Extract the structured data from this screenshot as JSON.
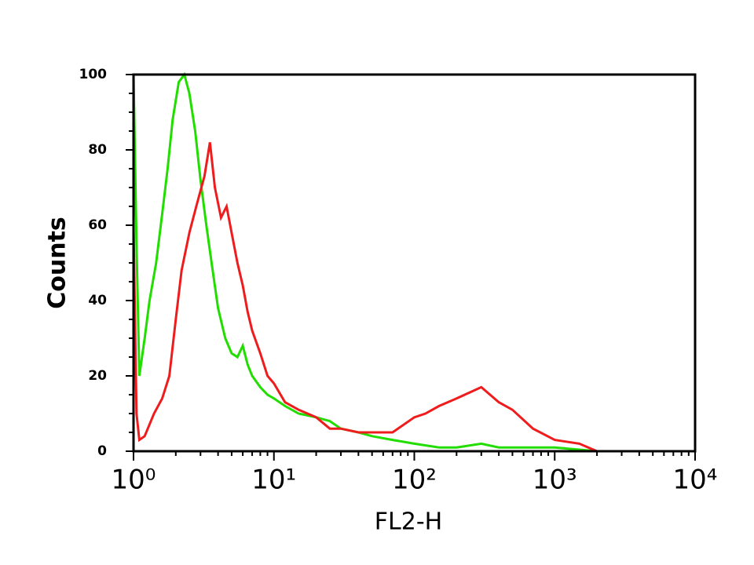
{
  "chart_data": {
    "type": "line",
    "xlabel": "FL2-H",
    "ylabel": "Counts",
    "xscale": "log",
    "xlim": [
      1,
      10000
    ],
    "xticks": [
      {
        "value": 1,
        "label": "10⁰"
      },
      {
        "value": 10,
        "label": "10¹"
      },
      {
        "value": 100,
        "label": "10²"
      },
      {
        "value": 1000,
        "label": "10³"
      },
      {
        "value": 10000,
        "label": "10⁴"
      }
    ],
    "ylim": [
      0,
      100
    ],
    "yticks": [
      0,
      20,
      40,
      60,
      80,
      100
    ],
    "series": [
      {
        "color": "#22dd00",
        "x": [
          1,
          1.05,
          1.1,
          1.2,
          1.3,
          1.45,
          1.6,
          1.75,
          1.9,
          2.1,
          2.3,
          2.5,
          2.75,
          3,
          3.3,
          3.6,
          4,
          4.5,
          5,
          5.5,
          6,
          6.5,
          7,
          8,
          9,
          10,
          12,
          15,
          20,
          25,
          30,
          40,
          50,
          70,
          100,
          150,
          200,
          300,
          400,
          500,
          700,
          1000,
          2000,
          10000
        ],
        "values": [
          100,
          55,
          20,
          30,
          40,
          50,
          63,
          75,
          88,
          98,
          100,
          95,
          85,
          72,
          60,
          50,
          38,
          30,
          26,
          25,
          28,
          23,
          20,
          17,
          15,
          14,
          12,
          10,
          9,
          8,
          6,
          5,
          4,
          3,
          2,
          1,
          1,
          2,
          1,
          1,
          1,
          1,
          0,
          0
        ]
      },
      {
        "color": "#ee1c1c",
        "x": [
          1,
          1.05,
          1.1,
          1.2,
          1.4,
          1.6,
          1.8,
          2,
          2.2,
          2.5,
          2.8,
          3.2,
          3.5,
          3.8,
          4.2,
          4.6,
          5,
          5.5,
          6,
          6.5,
          7,
          8,
          9,
          10,
          12,
          15,
          20,
          25,
          30,
          40,
          50,
          70,
          100,
          120,
          150,
          200,
          300,
          400,
          500,
          700,
          1000,
          1500,
          2000,
          10000
        ],
        "values": [
          60,
          10,
          3,
          4,
          10,
          14,
          20,
          35,
          48,
          58,
          65,
          73,
          82,
          70,
          62,
          65,
          58,
          50,
          44,
          37,
          32,
          26,
          20,
          18,
          13,
          11,
          9,
          6,
          6,
          5,
          5,
          5,
          9,
          10,
          12,
          14,
          17,
          13,
          11,
          6,
          3,
          2,
          0,
          0
        ]
      }
    ]
  }
}
